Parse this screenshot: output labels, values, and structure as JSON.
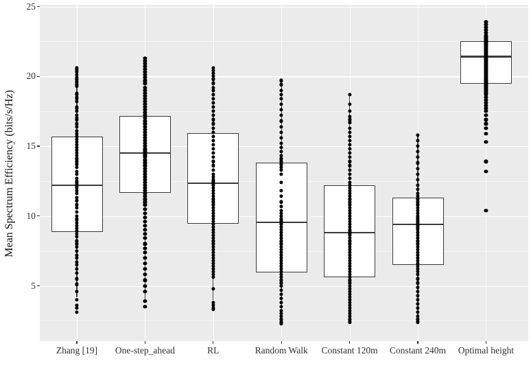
{
  "chart_data": {
    "type": "boxplot_with_points",
    "title": "",
    "xlabel": "",
    "ylabel": "Mean Spectrum Efficiency (bits/s/Hz)",
    "ylim": [
      1.05,
      25.1
    ],
    "yticks": [
      5,
      10,
      15,
      20,
      25
    ],
    "yticks_minor": [
      2.5,
      7.5,
      12.5,
      17.5,
      22.5
    ],
    "grid": "on",
    "legend": "none",
    "panel_background": "#ebebeb",
    "gridline_color": "#ffffff",
    "box_outline_color": "#3a3a3a",
    "point_color": "#000000",
    "categories": [
      "Zhang [19]",
      "One-step_ahead",
      "RL",
      "Random Walk",
      "Constant 120m",
      "Constant 240m",
      "Optimal height"
    ],
    "boxes": [
      {
        "category": "Zhang [19]",
        "whisker_low": 4.2,
        "q1": 8.85,
        "median": 12.2,
        "q3": 15.7,
        "whisker_high": 20.5,
        "points": [
          20.6,
          20.5,
          20.4,
          20.3,
          20.1,
          19.9,
          19.8,
          19.6,
          19.4,
          19.3,
          18.8,
          18.7,
          18.5,
          18.4,
          18.2,
          17.8,
          17.7,
          17.5,
          17.2,
          17.0,
          16.9,
          16.6,
          16.4,
          16.1,
          15.9,
          15.7,
          15.5,
          15.3,
          15.1,
          14.9,
          14.7,
          14.5,
          14.3,
          14.1,
          13.9,
          13.7,
          13.5,
          13.2,
          13.0,
          12.7,
          12.5,
          12.4,
          12.3,
          12.2,
          12.1,
          12.0,
          11.8,
          11.6,
          11.3,
          11.1,
          10.8,
          10.6,
          10.3,
          10.0,
          9.8,
          9.7,
          9.5,
          9.3,
          9.1,
          8.9,
          8.7,
          8.5,
          8.2,
          8.0,
          7.8,
          7.5,
          7.2,
          7.0,
          6.7,
          6.5,
          6.2,
          5.9,
          5.5,
          5.1,
          4.6,
          4.0,
          3.6,
          3.4,
          3.1
        ]
      },
      {
        "category": "One-step_ahead",
        "whisker_low": 3.9,
        "q1": 11.65,
        "median": 14.5,
        "q3": 17.15,
        "whisker_high": 21.3,
        "points": [
          21.3,
          21.1,
          20.9,
          20.7,
          20.5,
          20.3,
          20.1,
          19.9,
          19.7,
          19.5,
          19.2,
          19.0,
          18.8,
          18.6,
          18.4,
          18.2,
          18.0,
          17.8,
          17.6,
          17.4,
          17.2,
          17.0,
          16.8,
          16.6,
          16.4,
          16.2,
          16.0,
          15.8,
          15.6,
          15.4,
          15.2,
          15.0,
          14.8,
          14.7,
          14.6,
          14.5,
          14.4,
          14.3,
          14.2,
          14.0,
          13.8,
          13.6,
          13.4,
          13.2,
          13.0,
          12.8,
          12.6,
          12.4,
          12.2,
          12.0,
          11.8,
          11.6,
          11.4,
          11.2,
          11.0,
          10.8,
          10.5,
          10.2,
          9.9,
          9.6,
          9.3,
          9.0,
          8.7,
          8.4,
          8.0,
          7.7,
          7.4,
          7.0,
          6.6,
          6.2,
          5.8,
          5.4,
          5.0,
          4.6,
          3.9,
          3.5
        ]
      },
      {
        "category": "RL",
        "whisker_low": 4.0,
        "q1": 9.45,
        "median": 12.35,
        "q3": 15.95,
        "whisker_high": 20.6,
        "points": [
          20.6,
          20.4,
          20.2,
          20.0,
          19.8,
          19.5,
          19.2,
          19.0,
          18.7,
          18.4,
          18.1,
          17.8,
          17.5,
          17.2,
          16.9,
          16.6,
          16.3,
          16.0,
          15.7,
          15.4,
          15.1,
          14.8,
          14.5,
          14.2,
          13.9,
          13.6,
          13.3,
          13.0,
          12.8,
          12.6,
          12.5,
          12.4,
          12.3,
          12.2,
          12.0,
          11.8,
          11.6,
          11.4,
          11.2,
          11.0,
          10.8,
          10.6,
          10.4,
          10.2,
          10.0,
          9.8,
          9.6,
          9.4,
          9.2,
          9.0,
          8.8,
          8.6,
          8.4,
          8.2,
          8.0,
          7.8,
          7.6,
          7.4,
          7.2,
          7.0,
          6.8,
          6.6,
          6.4,
          6.2,
          6.0,
          5.8,
          5.6,
          4.8,
          3.8,
          3.6,
          3.4,
          3.3
        ]
      },
      {
        "category": "Random Walk",
        "whisker_low": 2.9,
        "q1": 5.95,
        "median": 9.55,
        "q3": 13.8,
        "whisker_high": 19.7,
        "points": [
          19.7,
          19.4,
          19.0,
          18.7,
          18.4,
          18.0,
          17.6,
          17.2,
          16.8,
          16.4,
          16.0,
          15.6,
          15.2,
          14.9,
          14.6,
          14.3,
          14.1,
          13.9,
          13.7,
          13.5,
          13.3,
          13.0,
          12.4,
          11.8,
          11.4,
          11.0,
          10.7,
          10.4,
          10.2,
          10.0,
          9.8,
          9.7,
          9.6,
          9.5,
          9.4,
          9.2,
          9.0,
          8.8,
          8.6,
          8.4,
          8.2,
          8.0,
          7.8,
          7.6,
          7.4,
          7.2,
          7.0,
          6.8,
          6.6,
          6.4,
          6.2,
          6.0,
          5.8,
          5.6,
          5.4,
          5.2,
          5.0,
          4.7,
          4.4,
          4.1,
          3.8,
          3.5,
          3.2,
          3.0,
          2.8,
          2.6,
          2.4,
          2.3
        ]
      },
      {
        "category": "Constant 120m",
        "whisker_low": 2.4,
        "q1": 5.6,
        "median": 8.8,
        "q3": 12.2,
        "whisker_high": 18.7,
        "points": [
          18.7,
          18.0,
          17.5,
          17.1,
          16.9,
          16.7,
          16.3,
          16.0,
          15.7,
          15.4,
          15.1,
          14.8,
          14.5,
          14.2,
          13.9,
          13.6,
          13.3,
          13.0,
          12.7,
          12.4,
          12.2,
          12.0,
          11.8,
          11.6,
          11.4,
          11.2,
          11.0,
          10.8,
          10.6,
          10.4,
          10.2,
          10.0,
          9.8,
          9.6,
          9.4,
          9.2,
          9.0,
          8.9,
          8.8,
          8.7,
          8.6,
          8.4,
          8.2,
          8.0,
          7.8,
          7.6,
          7.4,
          7.2,
          7.0,
          6.8,
          6.6,
          6.4,
          6.2,
          6.0,
          5.8,
          5.6,
          5.4,
          5.2,
          5.0,
          4.8,
          4.6,
          4.4,
          4.2,
          4.0,
          3.8,
          3.6,
          3.4,
          3.2,
          3.0,
          2.8,
          2.6,
          2.4
        ]
      },
      {
        "category": "Constant 240m",
        "whisker_low": 2.4,
        "q1": 6.5,
        "median": 9.4,
        "q3": 11.3,
        "whisker_high": 15.8,
        "points": [
          15.8,
          15.4,
          15.0,
          14.6,
          14.2,
          13.8,
          13.4,
          13.0,
          12.6,
          12.2,
          11.9,
          11.6,
          11.4,
          11.2,
          11.0,
          10.8,
          10.6,
          10.4,
          10.2,
          10.0,
          9.9,
          9.8,
          9.7,
          9.6,
          9.5,
          9.4,
          9.3,
          9.2,
          9.1,
          9.0,
          8.8,
          8.6,
          8.4,
          8.2,
          8.0,
          7.8,
          7.6,
          7.4,
          7.2,
          7.0,
          6.8,
          6.6,
          6.4,
          6.2,
          6.0,
          5.8,
          5.5,
          5.2,
          4.9,
          4.6,
          4.3,
          4.0,
          3.7,
          3.4,
          3.1,
          2.8,
          2.6,
          2.4
        ]
      },
      {
        "category": "Optimal height",
        "whisker_low": 17.9,
        "q1": 19.45,
        "median": 21.4,
        "q3": 22.5,
        "whisker_high": 23.9,
        "points": [
          23.9,
          23.7,
          23.5,
          23.3,
          23.1,
          22.9,
          22.8,
          22.7,
          22.6,
          22.5,
          22.4,
          22.3,
          22.2,
          22.1,
          22.0,
          21.9,
          21.8,
          21.7,
          21.6,
          21.5,
          21.4,
          21.3,
          21.2,
          21.1,
          21.0,
          20.9,
          20.8,
          20.7,
          20.6,
          20.5,
          20.4,
          20.3,
          20.2,
          20.1,
          20.0,
          19.9,
          19.8,
          19.7,
          19.6,
          19.5,
          19.4,
          19.3,
          19.2,
          19.1,
          19.0,
          18.9,
          18.8,
          18.7,
          18.5,
          18.3,
          18.1,
          17.9,
          17.7,
          17.5,
          17.2,
          16.9,
          16.6,
          16.3,
          15.9,
          15.3,
          13.9,
          13.2,
          10.4
        ]
      }
    ]
  }
}
